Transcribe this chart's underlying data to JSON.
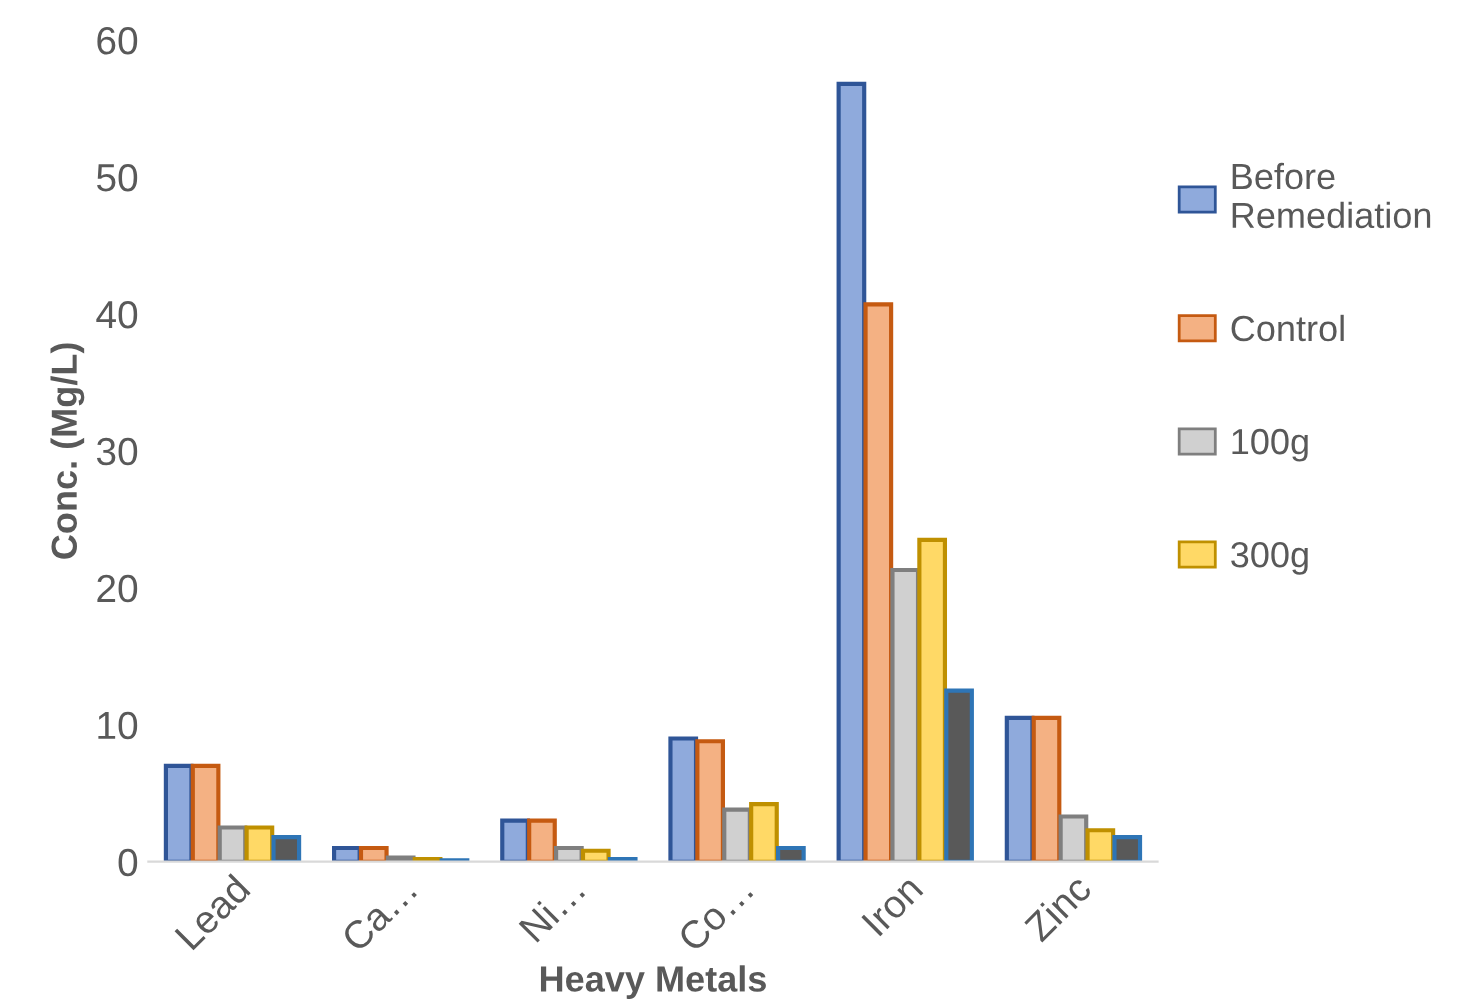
{
  "chart_data": {
    "type": "bar",
    "xlabel": "Heavy Metals",
    "ylabel": "Conc. (Mg/L)",
    "categories": [
      "Lead",
      "Ca…",
      "Ni…",
      "Co…",
      "Iron",
      "Zinc"
    ],
    "series": [
      {
        "name": "Before Remediation",
        "color": "#8faadc",
        "values": [
          7.0,
          1.0,
          3.0,
          9.0,
          56.8,
          10.5
        ]
      },
      {
        "name": "Control",
        "color": "#f4b183",
        "values": [
          7.0,
          1.0,
          3.0,
          8.8,
          40.7,
          10.5
        ]
      },
      {
        "name": "100g",
        "color": "#d0d0d0",
        "values": [
          2.5,
          0.3,
          1.0,
          3.8,
          21.3,
          3.3
        ]
      },
      {
        "name": "300g",
        "color": "#ffd966",
        "values": [
          2.5,
          0.2,
          0.8,
          4.2,
          23.5,
          2.3
        ]
      },
      {
        "color": "#595959",
        "values": [
          1.8,
          0.1,
          0.2,
          1.0,
          12.5,
          1.8
        ]
      }
    ],
    "ylim": [
      0,
      60
    ],
    "yticks": [
      0,
      10,
      20,
      30,
      40,
      50,
      60
    ],
    "grid": false,
    "legend": "right"
  }
}
